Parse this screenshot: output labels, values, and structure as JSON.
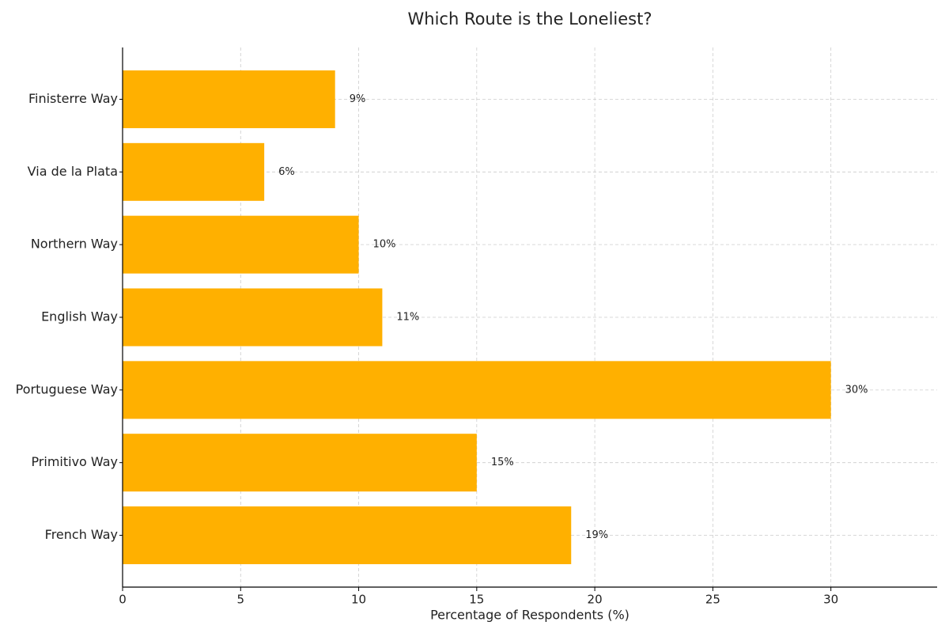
{
  "chart_data": {
    "type": "barh",
    "title": "Which Route is the Loneliest?",
    "xlabel": "Percentage of Respondents (%)",
    "categories": [
      "Finisterre Way",
      "Via de la Plata",
      "Northern Way",
      "English Way",
      "Portuguese Way",
      "Primitivo Way",
      "French Way"
    ],
    "values": [
      9,
      6,
      10,
      11,
      30,
      15,
      19
    ],
    "value_labels": [
      "9%",
      "6%",
      "10%",
      "11%",
      "30%",
      "15%",
      "19%"
    ],
    "color": "#ffb000",
    "xlim": [
      0,
      34.5
    ],
    "xticks": [
      0,
      5,
      10,
      15,
      20,
      25,
      30
    ],
    "grid": true
  }
}
